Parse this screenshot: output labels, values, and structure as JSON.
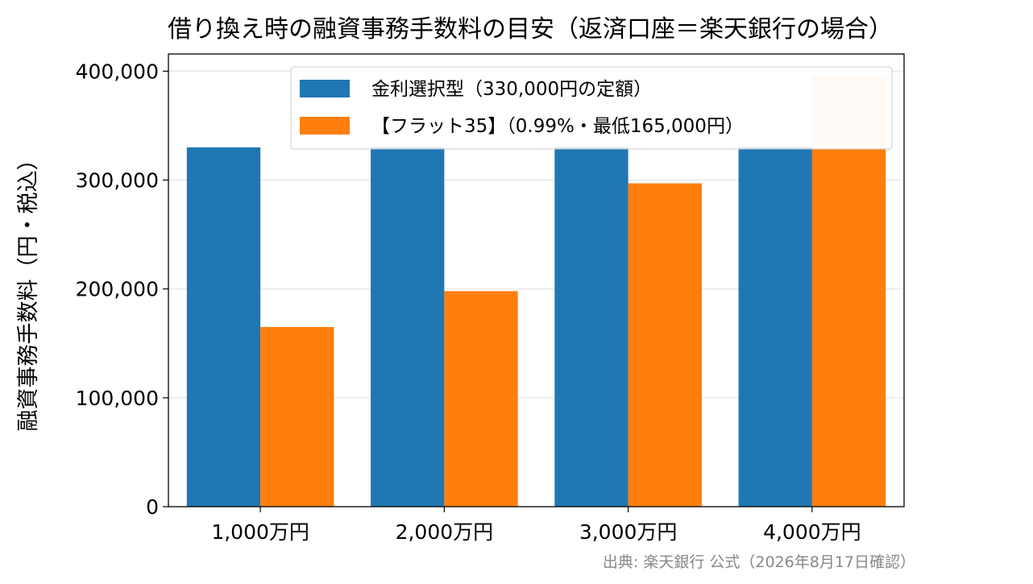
{
  "chart_data": {
    "type": "bar",
    "title": "借り換え時の融資事務手数料の目安（返済口座＝楽天銀行の場合）",
    "xlabel": "",
    "ylabel": "融資事務手数料（円・税込）",
    "categories": [
      "1,000万円",
      "2,000万円",
      "3,000万円",
      "4,000万円"
    ],
    "series": [
      {
        "name": "金利選択型（330,000円の定額）",
        "values": [
          330000,
          330000,
          330000,
          330000
        ],
        "color": "#1f77b4"
      },
      {
        "name": "【フラット35】（0.99%・最低165,000円）",
        "values": [
          165000,
          198000,
          297000,
          396000
        ],
        "color": "#ff7f0e"
      }
    ],
    "ylim": [
      0,
      415800
    ],
    "yticks": [
      0,
      100000,
      200000,
      300000
    ],
    "ytick_labels": [
      "0",
      "100,000",
      "200,000",
      "300,000"
    ],
    "ytick_top_label": "400,000",
    "grid": true,
    "legend_position": "top-right",
    "source_note": "出典: 楽天銀行 公式（2026年8月17日確認）"
  }
}
